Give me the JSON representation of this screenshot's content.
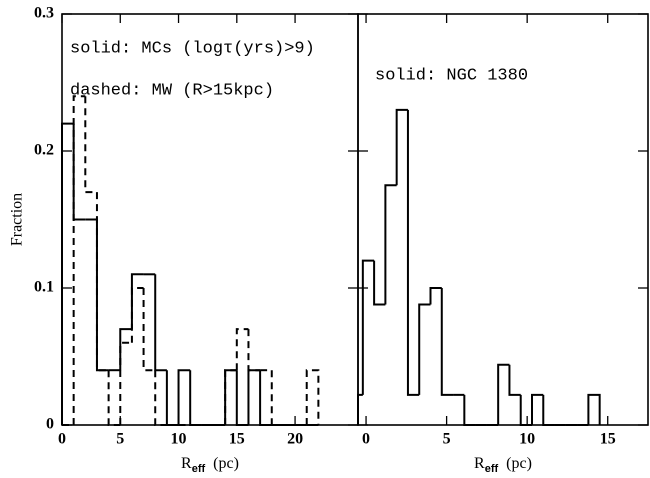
{
  "chart_data": [
    {
      "type": "histogram",
      "ylabel": "Fraction",
      "xlabel": [
        "R",
        "eff",
        "(pc)"
      ],
      "bins": [
        0,
        1,
        2,
        3,
        4,
        5,
        6,
        7,
        8,
        9,
        10,
        11,
        12,
        13,
        14,
        15,
        16,
        17,
        18,
        19,
        20,
        21,
        22
      ],
      "xlim": [
        0,
        25.4
      ],
      "xticks": [
        0,
        5,
        10,
        15,
        20
      ],
      "ylim": [
        0,
        0.3
      ],
      "yticks": [
        0,
        0.1,
        0.2,
        0.3
      ],
      "series": [
        {
          "name": "solid: MCs (logτ(yrs)>9)",
          "style": "solid",
          "color": "#000000",
          "values": [
            0.22,
            0.15,
            0.15,
            0.04,
            0.04,
            0.07,
            0.11,
            0.11,
            0.04,
            0,
            0.04,
            0,
            0,
            0,
            0.04,
            0,
            0.04,
            0,
            0,
            0,
            0,
            0
          ]
        },
        {
          "name": "dashed: MW (R>15kpc)",
          "style": "dashed",
          "color": "#000000",
          "values": [
            0,
            0.24,
            0.17,
            0.04,
            0,
            0.06,
            0.1,
            0.04,
            0,
            0,
            0,
            0,
            0,
            0,
            0.04,
            0.07,
            0.04,
            0.04,
            0,
            0,
            0,
            0.04
          ]
        }
      ]
    },
    {
      "type": "histogram",
      "xlabel": [
        "R",
        "eff",
        "(pc)"
      ],
      "bins": [
        -0.5,
        -0.2,
        0.5,
        1.2,
        1.9,
        2.6,
        3.3,
        4.0,
        4.7,
        5.4,
        6.1,
        6.8,
        7.5,
        8.2,
        8.9,
        9.6,
        10.3,
        11.0,
        11.7,
        12.4,
        13.1,
        13.8,
        14.5
      ],
      "xlim": [
        -0.5,
        17.5
      ],
      "xticks": [
        0,
        5,
        10,
        15
      ],
      "ylim": [
        0,
        0.3
      ],
      "series": [
        {
          "name": "solid: NGC 1380",
          "style": "solid",
          "color": "#000000",
          "values": [
            0.022,
            0.12,
            0.088,
            0.175,
            0.23,
            0.022,
            0.088,
            0.1,
            0.022,
            0.022,
            0,
            0,
            0,
            0.044,
            0.022,
            0,
            0.022,
            0,
            0,
            0,
            0,
            0.022
          ]
        }
      ]
    }
  ]
}
